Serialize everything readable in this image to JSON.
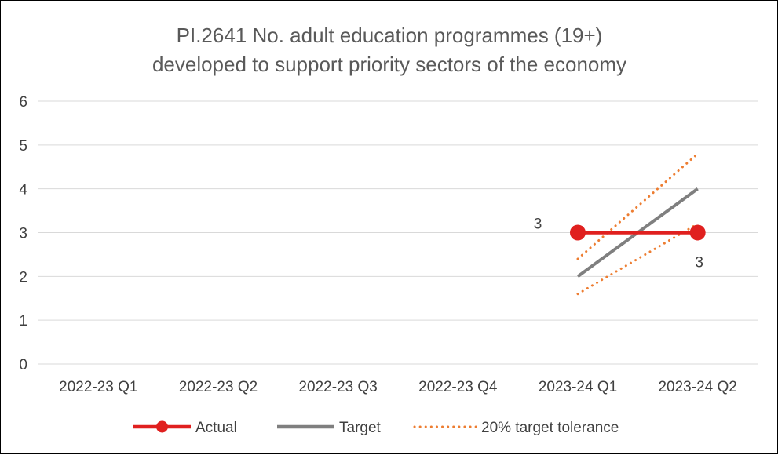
{
  "chart_data": {
    "type": "line",
    "title_lines": [
      "PI.2641 No. adult education programmes (19+)",
      "developed to support priority sectors of the economy"
    ],
    "categories": [
      "2022-23 Q1",
      "2022-23 Q2",
      "2022-23 Q3",
      "2022-23 Q4",
      "2023-24 Q1",
      "2023-24 Q2"
    ],
    "ylim": [
      0,
      6
    ],
    "yticks": [
      "0",
      "1",
      "2",
      "3",
      "4",
      "5",
      "6"
    ],
    "grid": true,
    "legend_position": "bottom",
    "series": [
      {
        "name": "Actual",
        "values": [
          null,
          null,
          null,
          null,
          3,
          3
        ],
        "color": "#e0201f",
        "style": "solid-markers",
        "data_labels": [
          null,
          null,
          null,
          null,
          "3",
          "3"
        ]
      },
      {
        "name": "Target",
        "values": [
          null,
          null,
          null,
          null,
          2,
          4
        ],
        "color": "#7f7f7f",
        "style": "solid"
      },
      {
        "name": "20% target tolerance",
        "values": [
          null,
          null,
          null,
          null,
          2.4,
          4.8
        ],
        "color": "#ed7d31",
        "style": "dotted"
      },
      {
        "name": "",
        "values": [
          null,
          null,
          null,
          null,
          1.6,
          3.2
        ],
        "color": "#ed7d31",
        "style": "dotted"
      }
    ]
  }
}
